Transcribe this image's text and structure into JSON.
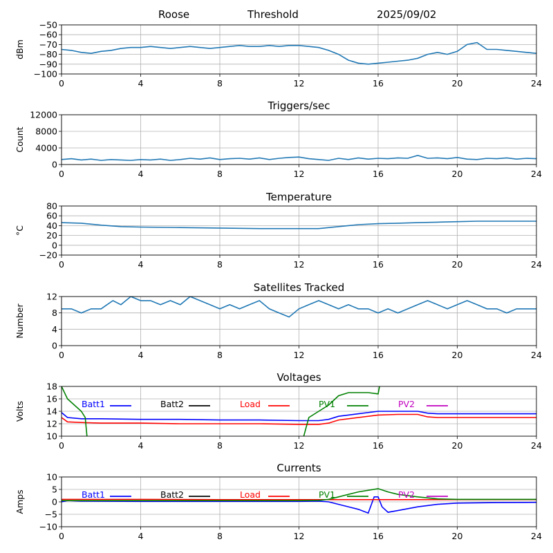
{
  "header": {
    "site": "Roose",
    "mode": "Threshold",
    "date": "2025/09/02"
  },
  "colors": {
    "line": "#1f77b4",
    "grid": "#b0b0b0",
    "axis": "#000000",
    "batt1": "#0000ff",
    "batt2": "#000000",
    "load": "#ff0000",
    "pv1": "#008000",
    "pv2": "#c000c0"
  },
  "chart_data": [
    {
      "type": "line",
      "title": "",
      "xlabel": "",
      "ylabel": "dBm",
      "xlim": [
        0,
        24
      ],
      "ylim": [
        -100,
        -50
      ],
      "grid": true,
      "xticks": [
        "0",
        "4",
        "8",
        "12",
        "16",
        "20",
        "24"
      ],
      "yticks": [
        "−50",
        "−60",
        "−70",
        "−80",
        "−90",
        "−100"
      ],
      "series": [
        {
          "x": [
            0,
            0.5,
            1,
            1.5,
            2,
            2.5,
            3,
            3.5,
            4,
            4.5,
            5,
            5.5,
            6,
            6.5,
            7,
            7.5,
            8,
            8.5,
            9,
            9.5,
            10,
            10.5,
            11,
            11.5,
            12,
            12.5,
            13,
            13.5,
            14,
            14.5,
            15,
            15.5,
            16,
            16.5,
            17,
            17.5,
            18,
            18.5,
            19,
            19.5,
            20,
            20.5,
            21,
            21.5,
            22,
            22.5,
            23,
            23.5,
            24
          ],
          "y": [
            -75,
            -76,
            -78,
            -79,
            -77,
            -76,
            -74,
            -73,
            -73,
            -72,
            -73,
            -74,
            -73,
            -72,
            -73,
            -74,
            -73,
            -72,
            -71,
            -72,
            -72,
            -71,
            -72,
            -71,
            -71,
            -72,
            -73,
            -76,
            -80,
            -86,
            -89,
            -90,
            -89,
            -88,
            -87,
            -86,
            -84,
            -80,
            -78,
            -80,
            -77,
            -70,
            -68,
            -75,
            -75,
            -76,
            -77,
            -78,
            -79
          ]
        }
      ]
    },
    {
      "type": "line",
      "title": "Triggers/sec",
      "xlabel": "",
      "ylabel": "Count",
      "xlim": [
        0,
        24
      ],
      "ylim": [
        0,
        12000
      ],
      "grid": true,
      "xticks": [
        "0",
        "4",
        "8",
        "12",
        "16",
        "20",
        "24"
      ],
      "yticks": [
        "0",
        "4000",
        "8000",
        "12000"
      ],
      "series": [
        {
          "x": [
            0,
            0.5,
            1,
            1.5,
            2,
            2.5,
            3,
            3.5,
            4,
            4.5,
            5,
            5.5,
            6,
            6.5,
            7,
            7.5,
            8,
            8.5,
            9,
            9.5,
            10,
            10.5,
            11,
            11.5,
            12,
            12.5,
            13,
            13.5,
            14,
            14.5,
            15,
            15.5,
            16,
            16.5,
            17,
            17.5,
            18,
            18.5,
            19,
            19.5,
            20,
            20.5,
            21,
            21.5,
            22,
            22.5,
            23,
            23.5,
            24
          ],
          "y": [
            1200,
            1400,
            1100,
            1300,
            1000,
            1200,
            1100,
            1000,
            1200,
            1100,
            1300,
            1000,
            1200,
            1500,
            1300,
            1600,
            1200,
            1400,
            1500,
            1300,
            1600,
            1200,
            1500,
            1700,
            1800,
            1400,
            1200,
            1000,
            1500,
            1200,
            1600,
            1300,
            1500,
            1400,
            1600,
            1500,
            2200,
            1500,
            1600,
            1400,
            1700,
            1300,
            1200,
            1500,
            1400,
            1600,
            1300,
            1500,
            1400
          ]
        }
      ]
    },
    {
      "type": "line",
      "title": "Temperature",
      "xlabel": "",
      "ylabel": "°C",
      "xlim": [
        0,
        24
      ],
      "ylim": [
        -20,
        80
      ],
      "grid": true,
      "xticks": [
        "0",
        "4",
        "8",
        "12",
        "16",
        "20",
        "24"
      ],
      "yticks": [
        "80",
        "60",
        "40",
        "20",
        "0",
        "−20"
      ],
      "series": [
        {
          "x": [
            0,
            1,
            2,
            3,
            4,
            6,
            8,
            10,
            12,
            13,
            14,
            15,
            16,
            17,
            18,
            19,
            20,
            21,
            22,
            23,
            24
          ],
          "y": [
            46,
            45,
            41,
            38,
            37,
            36,
            35,
            34,
            34,
            34,
            38,
            42,
            44,
            45,
            46,
            47,
            48,
            49,
            49,
            49,
            49
          ]
        }
      ]
    },
    {
      "type": "line",
      "title": "Satellites Tracked",
      "xlabel": "",
      "ylabel": "Number",
      "xlim": [
        0,
        24
      ],
      "ylim": [
        0,
        12
      ],
      "grid": true,
      "xticks": [
        "0",
        "4",
        "8",
        "12",
        "16",
        "20",
        "24"
      ],
      "yticks": [
        "0",
        "4",
        "8",
        "12"
      ],
      "series": [
        {
          "x": [
            0,
            0.5,
            1,
            1.5,
            2,
            2.3,
            2.6,
            3,
            3.5,
            4,
            4.5,
            5,
            5.5,
            6,
            6.5,
            7,
            7.5,
            8,
            8.5,
            9,
            9.5,
            10,
            10.5,
            11,
            11.5,
            12,
            12.5,
            13,
            13.5,
            14,
            14.5,
            15,
            15.5,
            16,
            16.5,
            17,
            17.5,
            18,
            18.5,
            19,
            19.5,
            20,
            20.5,
            21,
            21.5,
            22,
            22.5,
            23,
            23.5,
            24
          ],
          "y": [
            9,
            9,
            8,
            9,
            9,
            10,
            11,
            10,
            12,
            11,
            11,
            10,
            11,
            10,
            12,
            11,
            10,
            9,
            10,
            9,
            10,
            11,
            9,
            8,
            7,
            9,
            10,
            11,
            10,
            9,
            10,
            9,
            9,
            8,
            9,
            8,
            9,
            10,
            11,
            10,
            9,
            10,
            11,
            10,
            9,
            9,
            8,
            9,
            9,
            9
          ]
        }
      ]
    },
    {
      "type": "line",
      "title": "Voltages",
      "xlabel": "",
      "ylabel": "Volts",
      "xlim": [
        0,
        24
      ],
      "ylim": [
        10,
        18
      ],
      "grid": true,
      "xticks": [
        "0",
        "4",
        "8",
        "12",
        "16",
        "20",
        "24"
      ],
      "yticks": [
        "10",
        "12",
        "14",
        "16",
        "18"
      ],
      "series": [
        {
          "name": "Batt1",
          "color": "batt1",
          "x": [
            0,
            0.3,
            1,
            2,
            4,
            6,
            8,
            10,
            12,
            13,
            13.5,
            14,
            15,
            16,
            17,
            18,
            18.5,
            19,
            20,
            22,
            24
          ],
          "y": [
            13.8,
            13.0,
            12.8,
            12.8,
            12.7,
            12.7,
            12.6,
            12.6,
            12.5,
            12.5,
            12.7,
            13.2,
            13.6,
            14.0,
            14.0,
            14.0,
            13.7,
            13.6,
            13.6,
            13.6,
            13.6
          ]
        },
        {
          "name": "Batt2",
          "color": "batt2",
          "x": [],
          "y": []
        },
        {
          "name": "Load",
          "color": "load",
          "x": [
            0,
            0.3,
            1,
            2,
            4,
            6,
            8,
            10,
            12,
            13,
            13.5,
            14,
            15,
            16,
            17,
            18,
            18.5,
            19,
            20,
            22,
            24
          ],
          "y": [
            13.0,
            12.3,
            12.2,
            12.1,
            12.1,
            12.0,
            12.0,
            12.0,
            11.9,
            11.9,
            12.1,
            12.6,
            13.0,
            13.4,
            13.5,
            13.5,
            13.1,
            13.0,
            13.0,
            13.0,
            13.0
          ]
        },
        {
          "name": "PV1",
          "color": "pv1",
          "x": [
            0,
            0.3,
            1,
            1.2,
            1.3,
            12.2,
            12.5,
            13,
            13.5,
            14,
            14.5,
            15,
            15.5,
            16,
            16.1
          ],
          "y": [
            18,
            16,
            14,
            13,
            9.5,
            9.5,
            13,
            14,
            15,
            16.5,
            17,
            17,
            17,
            16.8,
            18.5
          ]
        },
        {
          "name": "PV2",
          "color": "pv2",
          "x": [],
          "y": []
        }
      ]
    },
    {
      "type": "line",
      "title": "Currents",
      "xlabel": "",
      "ylabel": "Amps",
      "xlim": [
        0,
        24
      ],
      "ylim": [
        -10,
        10
      ],
      "grid": true,
      "xticks": [
        "0",
        "4",
        "8",
        "12",
        "16",
        "20",
        "24"
      ],
      "yticks": [
        "10",
        "5",
        "0",
        "−5",
        "−10"
      ],
      "series": [
        {
          "name": "Batt1",
          "color": "batt1",
          "x": [
            0,
            0.3,
            1,
            4,
            8,
            12,
            13,
            13.5,
            14,
            15,
            15.5,
            15.8,
            16,
            16.2,
            16.5,
            17,
            18,
            19,
            20,
            22,
            24
          ],
          "y": [
            0,
            0.5,
            0.3,
            0.2,
            0.2,
            0.2,
            0.3,
            0,
            -1,
            -3,
            -4.5,
            2,
            2,
            -2,
            -4.2,
            -3.5,
            -2,
            -1,
            -0.5,
            -0.3,
            -0.2
          ]
        },
        {
          "name": "Batt2",
          "color": "batt2",
          "x": [],
          "y": []
        },
        {
          "name": "Load",
          "color": "load",
          "x": [
            0,
            4,
            8,
            12,
            14,
            16,
            18,
            20,
            24
          ],
          "y": [
            1,
            1,
            0.9,
            0.9,
            0.9,
            0.9,
            0.9,
            0.9,
            0.9
          ]
        },
        {
          "name": "PV1",
          "color": "pv1",
          "x": [
            0,
            4,
            8,
            12,
            13,
            13.5,
            14,
            15,
            16,
            16.5,
            17,
            18,
            19,
            20,
            22,
            24
          ],
          "y": [
            0.5,
            0.5,
            0.5,
            0.5,
            0.6,
            1,
            2,
            4,
            5.3,
            4,
            3,
            2,
            1.2,
            1,
            1,
            1
          ]
        },
        {
          "name": "PV2",
          "color": "pv2",
          "x": [],
          "y": []
        }
      ]
    }
  ]
}
